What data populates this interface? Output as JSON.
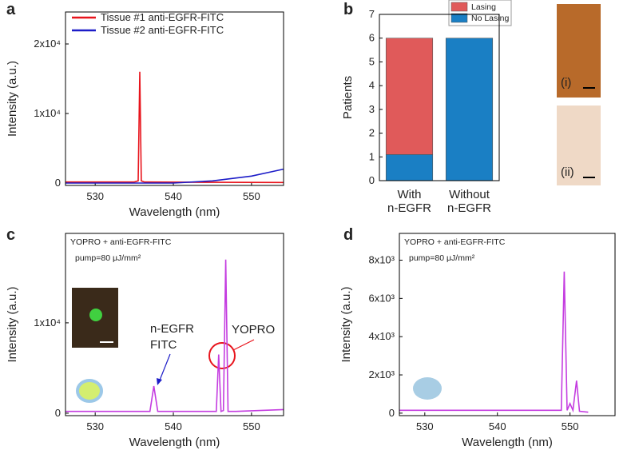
{
  "chart_data": [
    {
      "type": "line",
      "panel": "a",
      "x_label": "Wavelength (nm)",
      "y_label": "Intensity (a.u.)",
      "xlim": [
        526.2,
        554.1
      ],
      "xticks": [
        530,
        540,
        550
      ],
      "ylim": [
        -350,
        24600
      ],
      "yticks": [
        0,
        {
          "value": 10000,
          "label": "1x10⁴"
        },
        {
          "value": 20000,
          "label": "2x10⁴"
        }
      ],
      "legend": "top-left",
      "series": [
        {
          "name": "Tissue #1 anti-EGFR-FITC",
          "color": "#e8141c",
          "x": [
            526.2,
            535,
            535.5,
            535.7,
            535.9,
            536.3,
            545,
            554.1
          ],
          "values": [
            150,
            150,
            300,
            16000,
            300,
            150,
            100,
            80
          ]
        },
        {
          "name": "Tissue #2 anti-EGFR-FITC",
          "color": "#1c1cc8",
          "x": [
            526.2,
            540,
            545,
            550,
            554.1
          ],
          "values": [
            0,
            0,
            300,
            1000,
            2000
          ]
        }
      ]
    },
    {
      "type": "bar",
      "panel": "b",
      "y_label": "Patients",
      "categories": [
        [
          "With",
          "n-EGFR"
        ],
        [
          "Without",
          "n-EGFR"
        ]
      ],
      "ylim": [
        0,
        7
      ],
      "yticks": [
        0,
        1,
        2,
        3,
        4,
        5,
        6,
        7
      ],
      "legend": "top-right",
      "series": [
        {
          "name": "No Lasing",
          "color": "#1a7fc4",
          "values": [
            1.1,
            6
          ]
        },
        {
          "name": "Lasing",
          "color": "#e05a5a",
          "values": [
            4.9,
            0
          ]
        }
      ],
      "image_labels": [
        "(i)",
        "(ii)"
      ]
    },
    {
      "type": "line",
      "panel": "c",
      "x_label": "Wavelength (nm)",
      "y_label": "Intensity (a.u.)",
      "xlim": [
        526.2,
        554.1
      ],
      "xticks": [
        530,
        540,
        550
      ],
      "ylim": [
        -270,
        19900
      ],
      "yticks": [
        0,
        {
          "value": 10000,
          "label": "1x10⁴"
        }
      ],
      "annotations": [
        "YOPRO + anti-EGFR-FITC",
        "pump=80 μJ/mm²",
        "n-EGFR",
        "FITC",
        "YOPRO"
      ],
      "series": [
        {
          "color": "#c43ce0",
          "x": [
            526.2,
            537,
            537.5,
            538,
            545.5,
            545.8,
            546.1,
            546.4,
            546.7,
            547,
            548,
            554.1
          ],
          "values": [
            200,
            200,
            3000,
            200,
            200,
            6500,
            200,
            300,
            17000,
            200,
            200,
            400
          ]
        }
      ]
    },
    {
      "type": "line",
      "panel": "d",
      "x_label": "Wavelength (nm)",
      "y_label": "Intensity (a.u.)",
      "xlim": [
        526.5,
        556.2
      ],
      "xticks": [
        530,
        540,
        550
      ],
      "ylim": [
        -130,
        9400
      ],
      "yticks": [
        0,
        {
          "value": 2000,
          "label": "2x10³"
        },
        {
          "value": 4000,
          "label": "4x10³"
        },
        {
          "value": 6000,
          "label": "6x10³"
        },
        {
          "value": 8000,
          "label": "8x10³"
        }
      ],
      "annotations": [
        "YOPRO + anti-EGFR-FITC",
        "pump=80 μJ/mm²"
      ],
      "series": [
        {
          "color": "#c43ce0",
          "x": [
            526.5,
            548.8,
            549.2,
            549.6,
            550,
            550.4,
            550.9,
            551.3,
            552.5
          ],
          "values": [
            150,
            150,
            7400,
            150,
            500,
            150,
            1700,
            100,
            50
          ]
        }
      ]
    }
  ]
}
